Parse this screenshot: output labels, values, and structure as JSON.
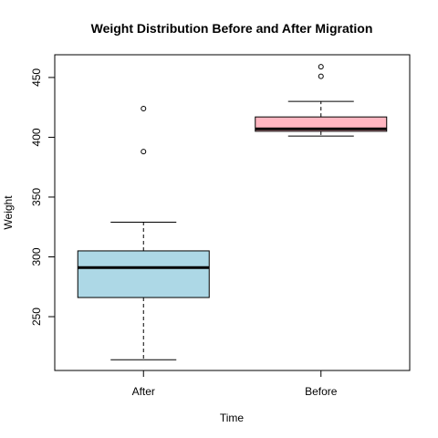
{
  "chart_data": {
    "type": "box",
    "title": "Weight Distribution Before and After Migration",
    "xlabel": "Time",
    "ylabel": "Weight",
    "ylim": [
      205,
      469
    ],
    "yticks": [
      250,
      300,
      350,
      400,
      450
    ],
    "categories": [
      "After",
      "Before"
    ],
    "boxes": [
      {
        "category": "After",
        "color": "#ADD8E6",
        "whisker_low": 214,
        "q1": 266,
        "median": 291,
        "q3": 305,
        "whisker_high": 329,
        "outliers": [
          388,
          424
        ]
      },
      {
        "category": "Before",
        "color": "#FFB6C1",
        "whisker_low": 401,
        "q1": 405,
        "median": 407,
        "q3": 417,
        "whisker_high": 430,
        "outliers": [
          451,
          459
        ]
      }
    ],
    "grid": false,
    "legend": "none"
  }
}
